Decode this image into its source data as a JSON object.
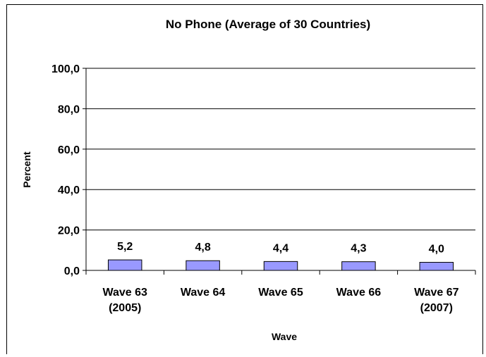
{
  "chart_data": {
    "type": "bar",
    "title": "No Phone (Average of 30 Countries)",
    "xlabel": "Wave",
    "ylabel": "Percent",
    "categories": [
      [
        "Wave 63",
        "(2005)"
      ],
      [
        "Wave 64"
      ],
      [
        "Wave 65"
      ],
      [
        "Wave 66"
      ],
      [
        "Wave 67",
        "(2007)"
      ]
    ],
    "values": [
      5.2,
      4.8,
      4.4,
      4.3,
      4.0
    ],
    "data_labels": [
      "5,2",
      "4,8",
      "4,4",
      "4,3",
      "4,0"
    ],
    "ylim": [
      0,
      100
    ],
    "yticks": [
      0,
      20,
      40,
      60,
      80,
      100
    ],
    "ytick_labels": [
      "0,0",
      "20,0",
      "40,0",
      "60,0",
      "80,0",
      "100,0"
    ],
    "grid": true,
    "bar_color": "#9999ff",
    "bar_edge_color": "#000000"
  }
}
